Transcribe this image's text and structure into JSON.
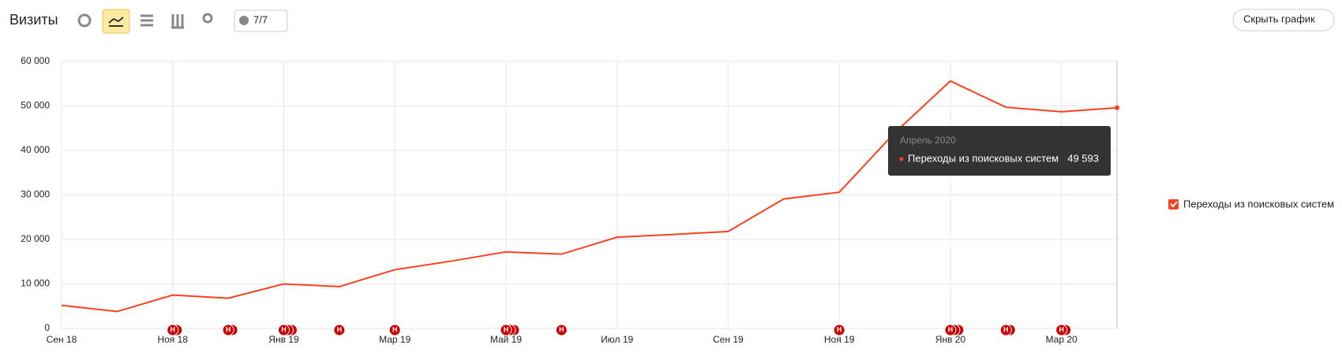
{
  "header": {
    "title": "Визиты",
    "counter": "7/7",
    "hide_button": "Скрыть график"
  },
  "chart_data": {
    "type": "line",
    "categories": [
      "Сен 18",
      null,
      "Ноя 18",
      null,
      "Янв 19",
      null,
      "Мар 19",
      null,
      "Май 19",
      null,
      "Июл 19",
      null,
      "Сен 19",
      null,
      "Ноя 19",
      null,
      "Янв 20",
      null,
      "Мар 20",
      null
    ],
    "series": [
      {
        "name": "Переходы из поисковых систем",
        "color": "#fc3f1d",
        "values": [
          5200,
          3800,
          7500,
          6800,
          10000,
          9400,
          13200,
          15100,
          17200,
          16700,
          20500,
          21100,
          21800,
          29100,
          30600,
          44000,
          55600,
          49700,
          48700,
          49593
        ],
        "value_labels": [
          null,
          null,
          null,
          null,
          null,
          null,
          null,
          null,
          null,
          null,
          null,
          null,
          null,
          null,
          null,
          null,
          null,
          null,
          null,
          "49 593"
        ]
      }
    ],
    "ylim": [
      0,
      60000
    ],
    "yticks": [
      0,
      {
        "value": 10000,
        "label": "10 000"
      },
      {
        "value": 20000,
        "label": "20 000"
      },
      {
        "value": 30000,
        "label": "30 000"
      },
      {
        "value": 40000,
        "label": "40 000"
      },
      {
        "value": 50000,
        "label": "50 000"
      },
      {
        "value": 60000,
        "label": "60 000"
      }
    ],
    "grid": true,
    "tooltip_title": "Апрель 2020",
    "annotation_label": "Н",
    "annotations": [
      {
        "month": 2,
        "count": 2
      },
      {
        "month": 3,
        "count": 2
      },
      {
        "month": 4,
        "count": 3
      },
      {
        "month": 5,
        "count": 1
      },
      {
        "month": 6,
        "count": 1
      },
      {
        "month": 8,
        "count": 3
      },
      {
        "month": 9,
        "count": 1
      },
      {
        "month": 14,
        "count": 1
      },
      {
        "month": 16,
        "count": 3
      },
      {
        "month": 17,
        "count": 2
      },
      {
        "month": 18,
        "count": 2
      }
    ]
  }
}
